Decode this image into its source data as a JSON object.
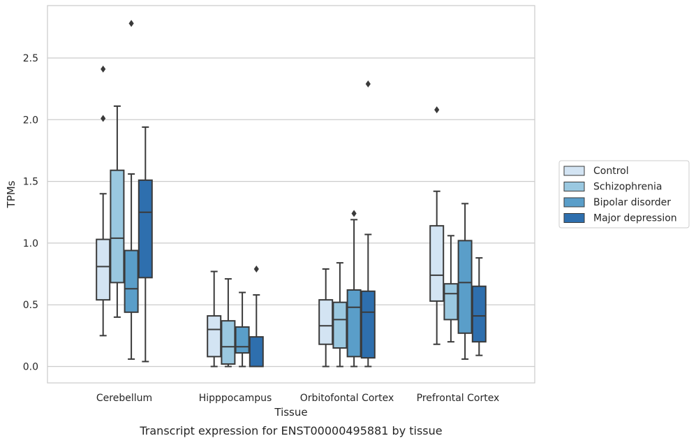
{
  "chart_data": {
    "type": "box",
    "caption": "Transcript expression for ENST00000495881 by tissue",
    "xlabel": "Tissue",
    "ylabel": "TPMs",
    "ylim": [
      -0.13,
      2.94
    ],
    "yticks": [
      "0.0",
      "0.5",
      "1.0",
      "1.5",
      "2.0",
      "2.5"
    ],
    "ytick_values": [
      0.0,
      0.5,
      1.0,
      1.5,
      2.0,
      2.5
    ],
    "grid": true,
    "legend_position": "right",
    "categories": [
      "Cerebellum",
      "Hipppocampus",
      "Orbitofontal Cortex",
      "Prefrontal Cortex"
    ],
    "series": [
      {
        "name": "Control",
        "color": "#d3e4f3",
        "boxes": [
          {
            "whislo": 0.25,
            "q1": 0.54,
            "med": 0.81,
            "q3": 1.03,
            "whishi": 1.4,
            "fliers": [
              2.01,
              2.41
            ]
          },
          {
            "whislo": 0.0,
            "q1": 0.08,
            "med": 0.3,
            "q3": 0.41,
            "whishi": 0.77,
            "fliers": []
          },
          {
            "whislo": 0.0,
            "q1": 0.18,
            "med": 0.33,
            "q3": 0.54,
            "whishi": 0.79,
            "fliers": []
          },
          {
            "whislo": 0.18,
            "q1": 0.53,
            "med": 0.74,
            "q3": 1.14,
            "whishi": 1.42,
            "fliers": [
              2.08
            ]
          }
        ]
      },
      {
        "name": "Schizophrenia",
        "color": "#9ac8e0",
        "boxes": [
          {
            "whislo": 0.4,
            "q1": 0.68,
            "med": 1.04,
            "q3": 1.59,
            "whishi": 2.11,
            "fliers": []
          },
          {
            "whislo": 0.0,
            "q1": 0.02,
            "med": 0.16,
            "q3": 0.37,
            "whishi": 0.71,
            "fliers": []
          },
          {
            "whislo": 0.0,
            "q1": 0.15,
            "med": 0.38,
            "q3": 0.52,
            "whishi": 0.84,
            "fliers": []
          },
          {
            "whislo": 0.2,
            "q1": 0.38,
            "med": 0.59,
            "q3": 0.67,
            "whishi": 1.06,
            "fliers": []
          }
        ]
      },
      {
        "name": "Bipolar disorder",
        "color": "#5a9ec9",
        "boxes": [
          {
            "whislo": 0.06,
            "q1": 0.44,
            "med": 0.63,
            "q3": 0.94,
            "whishi": 1.56,
            "fliers": [
              2.78
            ]
          },
          {
            "whislo": 0.0,
            "q1": 0.11,
            "med": 0.16,
            "q3": 0.32,
            "whishi": 0.6,
            "fliers": []
          },
          {
            "whislo": 0.0,
            "q1": 0.08,
            "med": 0.48,
            "q3": 0.62,
            "whishi": 1.19,
            "fliers": [
              1.24
            ]
          },
          {
            "whislo": 0.06,
            "q1": 0.27,
            "med": 0.68,
            "q3": 1.02,
            "whishi": 1.32,
            "fliers": []
          }
        ]
      },
      {
        "name": "Major depression",
        "color": "#2e6fae",
        "boxes": [
          {
            "whislo": 0.04,
            "q1": 0.72,
            "med": 1.25,
            "q3": 1.51,
            "whishi": 1.94,
            "fliers": []
          },
          {
            "whislo": 0.0,
            "q1": 0.0,
            "med": 0.0,
            "q3": 0.24,
            "whishi": 0.58,
            "fliers": [
              0.79
            ]
          },
          {
            "whislo": 0.0,
            "q1": 0.07,
            "med": 0.44,
            "q3": 0.61,
            "whishi": 1.07,
            "fliers": [
              2.29
            ]
          },
          {
            "whislo": 0.09,
            "q1": 0.2,
            "med": 0.41,
            "q3": 0.65,
            "whishi": 0.88,
            "fliers": []
          }
        ]
      }
    ]
  }
}
